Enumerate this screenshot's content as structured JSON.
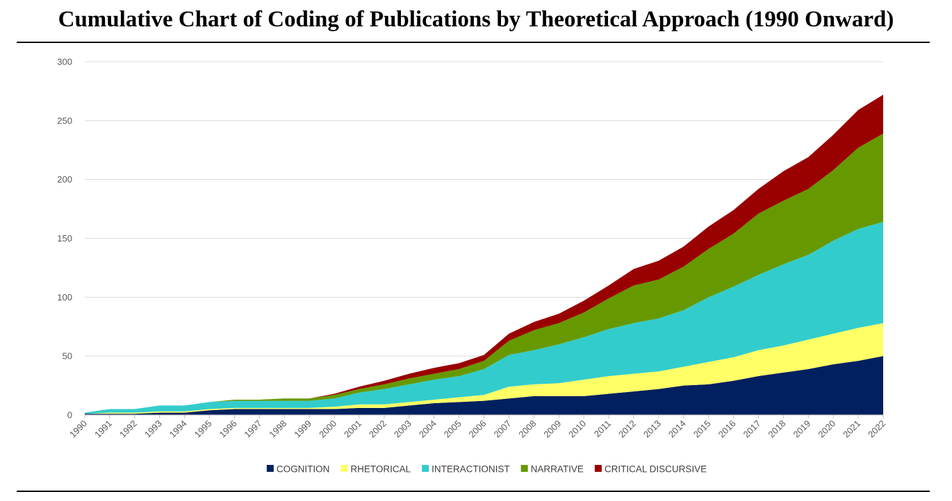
{
  "title": "Cumulative Chart of Coding of Publications by Theoretical Approach (1990 Onward)",
  "chart_data": {
    "type": "area",
    "stacked": true,
    "title": "Cumulative Chart of Coding of Publications by Theoretical Approach (1990 Onward)",
    "xlabel": "",
    "ylabel": "",
    "ylim": [
      0,
      300
    ],
    "yticks": [
      0,
      50,
      100,
      150,
      200,
      250,
      300
    ],
    "grid": true,
    "legend_position": "bottom",
    "x": [
      "1990",
      "1991",
      "1992",
      "1993",
      "1994",
      "1995",
      "1996",
      "1997",
      "1998",
      "1999",
      "2000",
      "2001",
      "2002",
      "2003",
      "2004",
      "2005",
      "2006",
      "2007",
      "2008",
      "2009",
      "2010",
      "2011",
      "2012",
      "2013",
      "2014",
      "2015",
      "2016",
      "2017",
      "2018",
      "2019",
      "2020",
      "2021",
      "2022"
    ],
    "series": [
      {
        "name": "COGNITION",
        "color": "#002060",
        "values": [
          1,
          1,
          1,
          2,
          2,
          4,
          5,
          5,
          5,
          5,
          5,
          6,
          6,
          8,
          10,
          11,
          12,
          14,
          16,
          16,
          16,
          18,
          20,
          22,
          25,
          26,
          29,
          33,
          36,
          39,
          43,
          46,
          50
        ]
      },
      {
        "name": "RHETORICAL",
        "color": "#FFFF66",
        "values": [
          0,
          1,
          1,
          1,
          1,
          1,
          1,
          1,
          1,
          1,
          2,
          3,
          3,
          3,
          3,
          4,
          5,
          10,
          10,
          11,
          14,
          15,
          15,
          15,
          16,
          19,
          20,
          22,
          23,
          25,
          26,
          28,
          28
        ]
      },
      {
        "name": "INTERACTIONIST",
        "color": "#33CCCC",
        "values": [
          1,
          3,
          3,
          5,
          5,
          6,
          6,
          6,
          6,
          6,
          7,
          10,
          13,
          15,
          17,
          18,
          22,
          27,
          29,
          33,
          36,
          40,
          43,
          45,
          48,
          55,
          60,
          64,
          69,
          72,
          79,
          84,
          86
        ]
      },
      {
        "name": "NARRATIVE",
        "color": "#669900",
        "values": [
          0,
          0,
          0,
          0,
          0,
          0,
          1,
          1,
          2,
          2,
          3,
          3,
          4,
          5,
          5,
          6,
          7,
          12,
          17,
          18,
          21,
          26,
          32,
          33,
          37,
          41,
          45,
          52,
          54,
          56,
          60,
          69,
          75
        ]
      },
      {
        "name": "CRITICAL DISCURSIVE",
        "color": "#990000",
        "values": [
          0,
          0,
          0,
          0,
          0,
          0,
          0,
          0,
          0,
          0,
          1,
          2,
          3,
          4,
          5,
          5,
          5,
          6,
          7,
          8,
          10,
          11,
          14,
          16,
          17,
          19,
          20,
          21,
          25,
          27,
          30,
          32,
          33
        ]
      }
    ]
  }
}
